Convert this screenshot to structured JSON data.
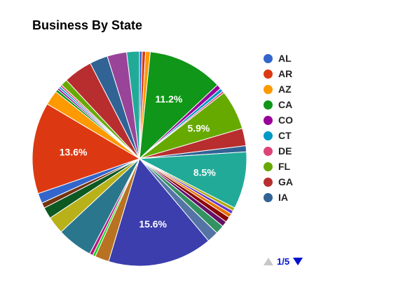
{
  "chart_data": {
    "type": "pie",
    "title": "Business By State",
    "slices": [
      {
        "value": 0.4,
        "color": "#3366cc"
      },
      {
        "value": 0.5,
        "color": "#dc3912"
      },
      {
        "value": 0.7,
        "color": "#ff9900"
      },
      {
        "value": 11.2,
        "color": "#109618",
        "label": "11.2%"
      },
      {
        "value": 0.7,
        "color": "#990099"
      },
      {
        "value": 0.5,
        "color": "#0099c6"
      },
      {
        "value": 0.3,
        "color": "#dd4477"
      },
      {
        "value": 5.9,
        "color": "#66aa00",
        "label": "5.9%"
      },
      {
        "value": 2.6,
        "color": "#b82e2e"
      },
      {
        "value": 0.9,
        "color": "#316395"
      },
      {
        "value": 8.5,
        "color": "#22aa99",
        "label": "8.5%"
      },
      {
        "value": 0.5,
        "color": "#aaaa11"
      },
      {
        "value": 0.5,
        "color": "#6633cc"
      },
      {
        "value": 0.6,
        "color": "#e67300"
      },
      {
        "value": 0.8,
        "color": "#8b0707"
      },
      {
        "value": 0.8,
        "color": "#651067"
      },
      {
        "value": 1.3,
        "color": "#329262"
      },
      {
        "value": 1.7,
        "color": "#5574a6"
      },
      {
        "value": 15.6,
        "color": "#3b3eac",
        "label": "15.6%"
      },
      {
        "value": 2.1,
        "color": "#b77322"
      },
      {
        "value": 0.4,
        "color": "#16d620"
      },
      {
        "value": 0.5,
        "color": "#b91383"
      },
      {
        "value": 5.3,
        "color": "#2a778d"
      },
      {
        "value": 2.6,
        "color": "#b8b11a"
      },
      {
        "value": 1.7,
        "color": "#0c5922"
      },
      {
        "value": 0.8,
        "color": "#743411"
      },
      {
        "value": 1.5,
        "color": "#3366cc"
      },
      {
        "value": 13.6,
        "color": "#dc3912",
        "label": "13.6%"
      },
      {
        "value": 2.2,
        "color": "#ff9900"
      },
      {
        "value": 0.4,
        "color": "#109618"
      },
      {
        "value": 0.3,
        "color": "#990099"
      },
      {
        "value": 0.3,
        "color": "#0099c6"
      },
      {
        "value": 0.3,
        "color": "#dd4477"
      },
      {
        "value": 1.0,
        "color": "#66aa00"
      },
      {
        "value": 4.3,
        "color": "#b82e2e"
      },
      {
        "value": 2.7,
        "color": "#316395"
      },
      {
        "value": 2.9,
        "color": "#994499"
      },
      {
        "value": 1.9,
        "color": "#22aa99"
      }
    ],
    "legend": {
      "placement": "right",
      "entries": [
        {
          "name": "AL",
          "color": "#3366cc"
        },
        {
          "name": "AR",
          "color": "#dc3912"
        },
        {
          "name": "AZ",
          "color": "#ff9900"
        },
        {
          "name": "CA",
          "color": "#109618"
        },
        {
          "name": "CO",
          "color": "#990099"
        },
        {
          "name": "CT",
          "color": "#0099c6"
        },
        {
          "name": "DE",
          "color": "#dd4477"
        },
        {
          "name": "FL",
          "color": "#66aa00"
        },
        {
          "name": "GA",
          "color": "#b82e2e"
        },
        {
          "name": "IA",
          "color": "#316395"
        }
      ]
    }
  },
  "pager": {
    "text": "1/5",
    "prev_icon": "triangle-up-icon",
    "next_icon": "triangle-down-icon"
  }
}
